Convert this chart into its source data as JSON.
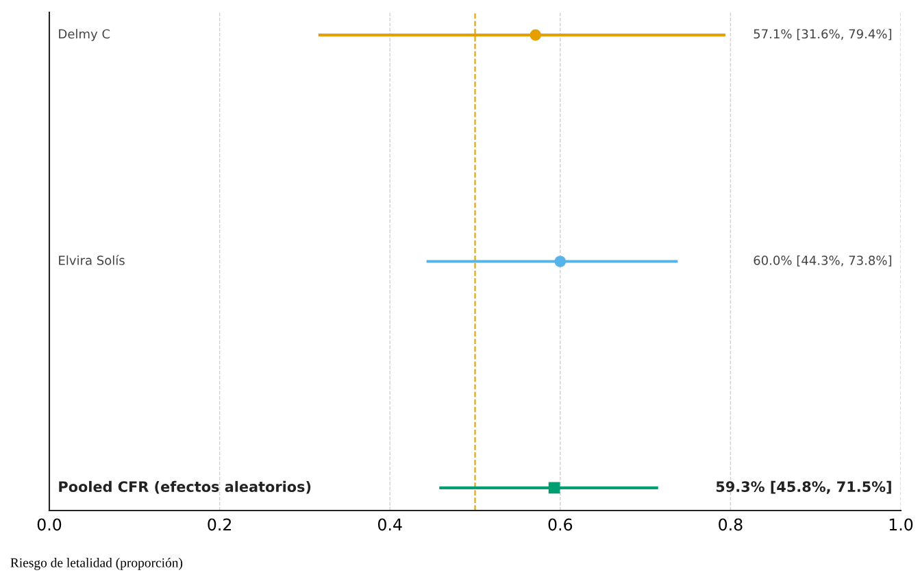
{
  "chart_data": {
    "type": "scatter",
    "orientation": "horizontal",
    "xlabel": "Riesgo de letalidad (proporción)",
    "categories": [
      "Delmy C",
      "Elvira Solís",
      "Pooled CFR (efectos aleatorios)"
    ],
    "series": [
      {
        "color": "#e69f00",
        "marker": "circle",
        "values": [
          0.571,
          null,
          null
        ],
        "errors": [
          [
            0.316,
            0.794
          ],
          null,
          null
        ]
      },
      {
        "color": "#56b4e9",
        "marker": "circle",
        "values": [
          null,
          0.6,
          null
        ],
        "errors": [
          null,
          [
            0.443,
            0.738
          ],
          null
        ]
      },
      {
        "color": "#009e73",
        "marker": "square",
        "values": [
          null,
          null,
          0.593
        ],
        "errors": [
          null,
          null,
          [
            0.458,
            0.715
          ]
        ]
      }
    ],
    "annotations": [
      "57.1% [31.6%, 79.4%]",
      "60.0% [44.3%, 73.8%]",
      "59.3% [45.8%, 71.5%]"
    ],
    "xlim": [
      0,
      1
    ],
    "xticks": [
      {
        "value": 0,
        "label": "0.0"
      },
      0.2,
      0.4,
      0.6,
      0.8,
      {
        "value": 1,
        "label": "1.0"
      }
    ],
    "grid": "x",
    "ref_lines": [
      {
        "axis": "x",
        "value": 0.5,
        "color": "#e69f00",
        "line_style": "dashed"
      }
    ],
    "tick_labels": "x",
    "legend": false
  }
}
